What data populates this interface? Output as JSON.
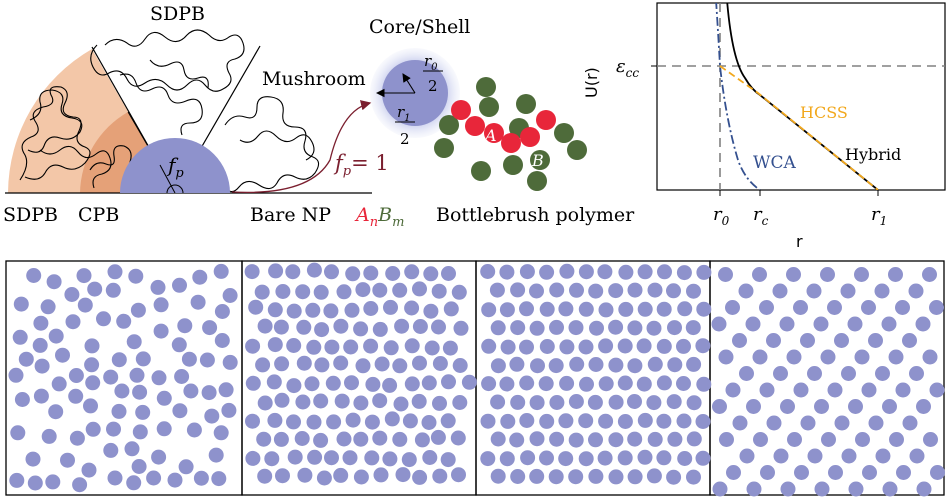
{
  "schematic": {
    "sdpb_top": "SDPB",
    "core_shell": "Core/Shell",
    "mushroom": "Mushroom",
    "sdpb_bottom": "SDPB",
    "cpb": "CPB",
    "bare_np": "Bare NP",
    "bottlebrush": "Bottlebrush polymer",
    "fp_symbol": "f",
    "fp_sub": "p",
    "fp_eq": "= 1",
    "r0_num": "r",
    "r0_sub": "0",
    "r1_num": "r",
    "r1_sub": "1",
    "half_den": "2",
    "monomer_a": "A",
    "monomer_b": "B",
    "an": "A",
    "an_sub": "n",
    "bm": "B",
    "bm_sub": "m"
  },
  "potential_plot": {
    "ylabel": "U(r)",
    "xlabel": "r",
    "yticks": [
      {
        "main": "ε",
        "sub": "cc"
      }
    ],
    "xticks": [
      {
        "main": "r",
        "sub": "0"
      },
      {
        "main": "r",
        "sub": "c"
      },
      {
        "main": "r",
        "sub": "1"
      }
    ],
    "curve_labels": {
      "hcss": "HCSS",
      "hybrid": "Hybrid",
      "wca": "WCA"
    },
    "colors": {
      "hybrid": "#000000",
      "hcss": "#f2a81d",
      "wca": "#34508f",
      "guide": "#808080"
    }
  },
  "colors": {
    "nanoparticle": "#8e92cc",
    "shell_light": "#f3c7a8",
    "shell_dark": "#e29a70",
    "monomer_a": "#e8263a",
    "monomer_b": "#4e6b3a",
    "arrow": "#7b1f2f"
  },
  "chart_data": {
    "type": "line",
    "xlabel": "r",
    "ylabel": "U(r)",
    "xticks": [
      "r0",
      "rc",
      "r1"
    ],
    "yticks": [
      "εcc"
    ],
    "series": [
      {
        "name": "Hybrid",
        "style": "solid",
        "color": "#000000"
      },
      {
        "name": "HCSS",
        "style": "dashed",
        "color": "#f2a81d"
      },
      {
        "name": "WCA",
        "style": "dash-dot",
        "color": "#34508f"
      }
    ]
  }
}
